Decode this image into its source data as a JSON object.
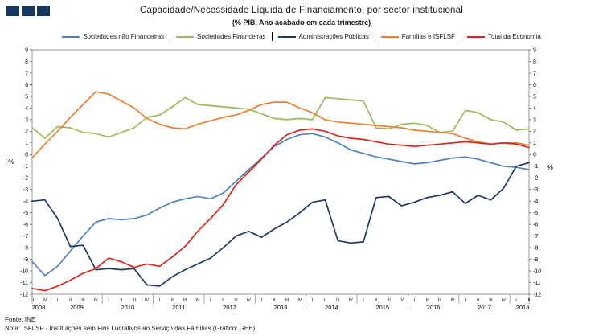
{
  "header": {
    "title": "Capacidade/Necessidade Líquida de Financiamento, por sector institucional",
    "subtitle": "(% PIB, Ano acabado em cada trimestre)"
  },
  "footer": {
    "source": "Fonte: INE",
    "note": "Nota: ISFLSF - Instituições sem Fins Lucrativos ao Serviço das Famílias (Gráfico: GEE)"
  },
  "logo": {
    "color": "#17375E",
    "squares": 3
  },
  "chart_data": {
    "type": "line",
    "title": "Capacidade/Necessidade Líquida de Financiamento, por sector institucional",
    "subtitle": "(% PIB, Ano acabado em cada trimestre)",
    "ylabel_left": "%",
    "ylabel_right": "%",
    "ylim": [
      -12,
      9
    ],
    "ytick_step": 1,
    "grid": false,
    "legend_position": "top",
    "frame_color": "#808080",
    "x_quarters": [
      "III",
      "IV",
      "I",
      "II",
      "III",
      "IV",
      "I",
      "II",
      "III",
      "IV",
      "I",
      "II",
      "III",
      "IV",
      "I",
      "II",
      "III",
      "IV",
      "I",
      "II",
      "III",
      "IV",
      "I",
      "II",
      "III",
      "IV",
      "I",
      "II",
      "III",
      "IV",
      "I",
      "II",
      "III",
      "IV",
      "I",
      "II",
      "III",
      "IV",
      "I",
      "II"
    ],
    "x_years": [
      {
        "year": "2008",
        "count": 2
      },
      {
        "year": "2009",
        "count": 4
      },
      {
        "year": "2010",
        "count": 4
      },
      {
        "year": "2011",
        "count": 4
      },
      {
        "year": "2012",
        "count": 4
      },
      {
        "year": "2013",
        "count": 4
      },
      {
        "year": "2014",
        "count": 4
      },
      {
        "year": "2015",
        "count": 4
      },
      {
        "year": "2016",
        "count": 4
      },
      {
        "year": "2017",
        "count": 4
      },
      {
        "year": "2018",
        "count": 2
      }
    ],
    "series": [
      {
        "name": "Sociedades não Financeiras",
        "color": "#4F81BD",
        "values": [
          -9.2,
          -10.4,
          -9.6,
          -8.3,
          -7.0,
          -5.8,
          -5.5,
          -5.6,
          -5.5,
          -5.2,
          -4.6,
          -4.1,
          -3.8,
          -3.6,
          -3.8,
          -3.3,
          -2.3,
          -1.3,
          -0.3,
          0.7,
          1.3,
          1.7,
          1.8,
          1.5,
          1.0,
          0.4,
          0.1,
          -0.2,
          -0.4,
          -0.6,
          -0.8,
          -0.7,
          -0.5,
          -0.3,
          -0.2,
          -0.4,
          -0.7,
          -1.0,
          -1.1,
          -1.3
        ]
      },
      {
        "name": "Sociedades Financeiras",
        "color": "#9BBB59",
        "values": [
          2.3,
          1.4,
          2.4,
          2.3,
          1.9,
          1.8,
          1.5,
          1.9,
          2.3,
          3.2,
          3.4,
          4.1,
          4.9,
          4.3,
          4.2,
          4.1,
          4.0,
          3.9,
          3.5,
          3.1,
          3.0,
          3.1,
          3.0,
          4.9,
          4.8,
          4.7,
          4.6,
          2.3,
          2.2,
          2.6,
          2.7,
          2.5,
          1.9,
          2.0,
          3.8,
          3.6,
          3.0,
          2.8,
          2.1,
          2.2
        ]
      },
      {
        "name": "Administrações Públicas",
        "color": "#1F3864",
        "values": [
          -4.0,
          -3.9,
          -5.5,
          -7.9,
          -7.8,
          -9.9,
          -9.8,
          -9.9,
          -9.8,
          -11.2,
          -11.3,
          -10.5,
          -9.9,
          -9.4,
          -8.9,
          -8.0,
          -7.0,
          -6.6,
          -7.1,
          -6.4,
          -5.8,
          -5.0,
          -4.1,
          -3.9,
          -7.4,
          -7.6,
          -7.5,
          -3.7,
          -3.6,
          -4.4,
          -4.1,
          -3.7,
          -3.5,
          -3.2,
          -4.2,
          -3.5,
          -3.9,
          -2.9,
          -1.0,
          -0.7
        ]
      },
      {
        "name": "Famílias e ISFLSF",
        "color": "#ED7D31",
        "values": [
          -0.3,
          0.9,
          2.0,
          3.2,
          4.3,
          5.4,
          5.2,
          4.6,
          4.0,
          3.1,
          2.6,
          2.3,
          2.2,
          2.6,
          2.9,
          3.2,
          3.4,
          3.8,
          4.3,
          4.5,
          4.5,
          4.0,
          3.6,
          3.0,
          2.8,
          2.7,
          2.6,
          2.5,
          2.4,
          2.3,
          2.1,
          2.0,
          1.9,
          1.8,
          1.4,
          1.1,
          0.9,
          1.0,
          1.0,
          0.8
        ]
      },
      {
        "name": "Total da Economia",
        "color": "#D9261C",
        "values": [
          -11.5,
          -11.7,
          -11.3,
          -10.8,
          -10.2,
          -9.8,
          -8.9,
          -9.2,
          -9.7,
          -9.4,
          -9.6,
          -8.8,
          -7.9,
          -6.6,
          -5.5,
          -4.3,
          -2.6,
          -1.5,
          -0.4,
          0.8,
          1.7,
          2.1,
          2.2,
          2.0,
          1.6,
          1.4,
          1.3,
          1.1,
          0.9,
          0.8,
          0.7,
          0.8,
          0.9,
          1.0,
          1.1,
          1.0,
          0.9,
          1.0,
          0.9,
          0.6
        ]
      }
    ]
  }
}
